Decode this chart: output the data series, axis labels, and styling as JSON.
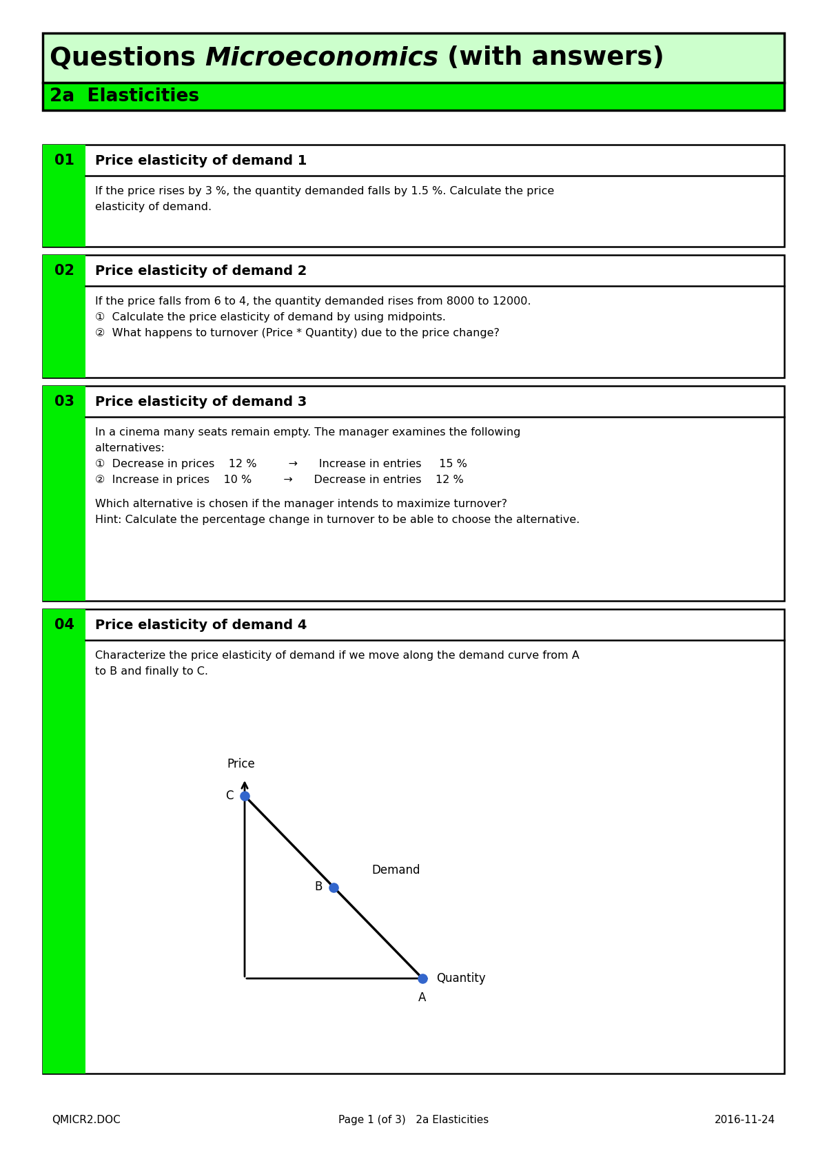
{
  "title_text": "Questions ",
  "title_italic": "Microeconomics",
  "title_rest": " (with answers)",
  "subtitle": "2a  Elasticities",
  "title_bg": "#ccffcc",
  "subtitle_bg": "#00ee00",
  "border_color": "#000000",
  "left_bar_color": "#00ee00",
  "page_bg": "#ffffff",
  "footer_left": "QMICR2.DOC",
  "footer_center": "Page 1 (of 3)   2a Elasticities",
  "footer_right": "2016-11-24",
  "q01_number": "01",
  "q01_title": "Price elasticity of demand 1",
  "q01_body": "If the price rises by 3 %, the quantity demanded falls by 1.5 %. Calculate the price\nelasticity of demand.",
  "q02_number": "02",
  "q02_title": "Price elasticity of demand 2",
  "q02_body_line1": "If the price falls from 6 to 4, the quantity demanded rises from 8000 to 12000.",
  "q02_body_line2": "①  Calculate the price elasticity of demand by using midpoints.",
  "q02_body_line3": "②  What happens to turnover (Price * Quantity) due to the price change?",
  "q03_number": "03",
  "q03_title": "Price elasticity of demand 3",
  "q03_body_line1": "In a cinema many seats remain empty. The manager examines the following",
  "q03_body_line2": "alternatives:",
  "q03_body_line3": "①  Decrease in prices    12 %         →      Increase in entries     15 %",
  "q03_body_line4": "②  Increase in prices    10 %         →      Decrease in entries    12 %",
  "q03_body_line5": "",
  "q03_body_line6": "Which alternative is chosen if the manager intends to maximize turnover?",
  "q03_body_line7": "Hint: Calculate the percentage change in turnover to be able to choose the alternative.",
  "q04_number": "04",
  "q04_title": "Price elasticity of demand 4",
  "q04_body_line1": "Characterize the price elasticity of demand if we move along the demand curve from A",
  "q04_body_line2": "to B and finally to C.",
  "diagram_price_label": "Price",
  "diagram_quantity_label": "Quantity",
  "diagram_demand_label": "Demand",
  "diagram_point_A": "A",
  "diagram_point_B": "B",
  "diagram_point_C": "C",
  "diagram_dot_color": "#3366cc"
}
